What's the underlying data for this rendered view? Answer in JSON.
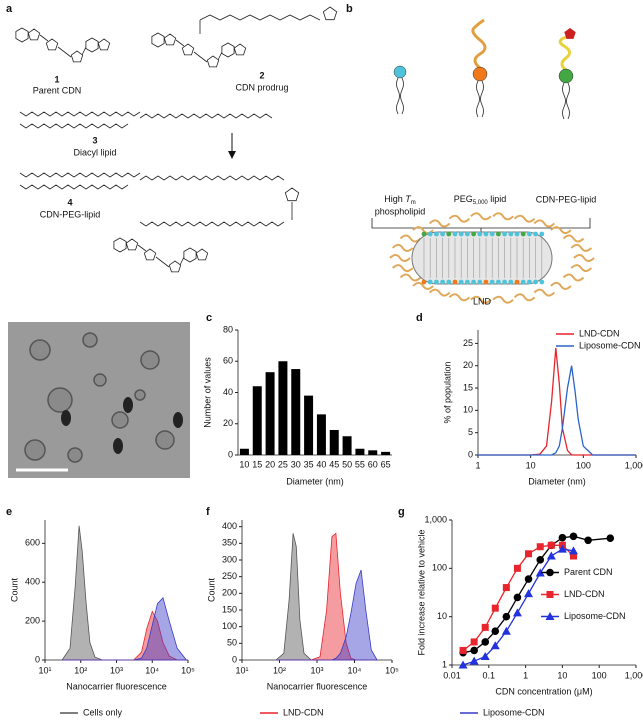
{
  "panels": {
    "a": {
      "label": "a",
      "compounds": [
        {
          "number": "1",
          "name": "Parent CDN"
        },
        {
          "number": "2",
          "name": "CDN prodrug"
        },
        {
          "number": "3",
          "name": "Diacyl lipid"
        },
        {
          "number": "4",
          "name": "CDN-PEG-lipid"
        }
      ]
    },
    "b": {
      "label": "b",
      "phospholipid": {
        "prefix": "High ",
        "italic": "T",
        "sub": "m",
        "line2": "phospholipid"
      },
      "peg_lipid": {
        "prefix": "PEG",
        "sub": "5,000",
        "suffix": " lipid"
      },
      "cdn_peg_lipid": "CDN-PEG-lipid",
      "particle": "LND"
    }
  },
  "chart_data": [
    {
      "type": "bar",
      "panel": "c",
      "color": "#000000",
      "categories": [
        "10",
        "15",
        "20",
        "25",
        "30",
        "35",
        "40",
        "45",
        "50",
        "55",
        "60",
        "65"
      ],
      "values": [
        4,
        44,
        53,
        60,
        55,
        38,
        26,
        16,
        12,
        4,
        3,
        2
      ],
      "ylim": [
        0,
        80
      ],
      "yticks": [
        0,
        20,
        40,
        60,
        80
      ],
      "xlabel": "Diameter (nm)",
      "ylabel": "Number of values"
    },
    {
      "type": "line",
      "panel": "d",
      "xlog": true,
      "legend": "top-right",
      "x": [
        1,
        10,
        15,
        20,
        25,
        30,
        35,
        40,
        50,
        60,
        70,
        80,
        100,
        150,
        1000
      ],
      "series": [
        {
          "name": "LND-CDN",
          "color": "#e8242c",
          "values": [
            0,
            0,
            0.2,
            2,
            12,
            24,
            16,
            6,
            1,
            0,
            0,
            0,
            0,
            0,
            0
          ]
        },
        {
          "name": "Liposome-CDN",
          "color": "#2b63c9",
          "values": [
            0,
            0,
            0,
            0,
            0,
            0.5,
            2,
            6,
            15,
            20,
            14,
            8,
            2,
            0,
            0
          ]
        }
      ],
      "xlim": [
        1,
        1000
      ],
      "xticks": [
        1,
        10,
        100,
        {
          "value": 1000,
          "label": "1,000"
        }
      ],
      "ylim": [
        0,
        28
      ],
      "yticks": [
        0,
        5,
        10,
        15,
        20,
        25
      ],
      "xlabel": "Diameter (nm)",
      "ylabel": "% of population"
    },
    {
      "type": "area",
      "panel": "e",
      "xlog": true,
      "legend": "bottom",
      "x": [
        30,
        50,
        70,
        90,
        110,
        140,
        180,
        250,
        400,
        3000,
        5000,
        7000,
        10000,
        14000,
        20000,
        30000,
        50000,
        90000
      ],
      "series": [
        {
          "name": "Cells only",
          "color": "#555555",
          "values": [
            0,
            60,
            380,
            690,
            560,
            300,
            90,
            15,
            0,
            0,
            0,
            0,
            0,
            0,
            0,
            0,
            0,
            0
          ]
        },
        {
          "name": "LND-CDN",
          "color": "#e8242c",
          "values": [
            0,
            0,
            0,
            0,
            0,
            0,
            0,
            0,
            0,
            0,
            40,
            160,
            250,
            200,
            90,
            20,
            0,
            0
          ]
        },
        {
          "name": "Liposome-CDN",
          "color": "#3a3ac8",
          "values": [
            0,
            0,
            0,
            0,
            0,
            0,
            0,
            0,
            0,
            0,
            10,
            60,
            180,
            290,
            320,
            200,
            60,
            0
          ]
        }
      ],
      "xlim": [
        10,
        100000
      ],
      "xticks": [
        {
          "value": 10,
          "label": "10¹"
        },
        {
          "value": 100,
          "label": "10²"
        },
        {
          "value": 1000,
          "label": "10³"
        },
        {
          "value": 10000,
          "label": "10⁴"
        },
        {
          "value": 100000,
          "label": "10⁵"
        }
      ],
      "ylim": [
        0,
        720
      ],
      "yticks": [
        0,
        200,
        400,
        600
      ],
      "xlabel": "Nanocarrier fluorescence",
      "ylabel": "Count"
    },
    {
      "type": "area",
      "panel": "f",
      "xlog": true,
      "x": [
        80,
        130,
        180,
        230,
        280,
        350,
        450,
        700,
        1200,
        1800,
        2500,
        3200,
        4200,
        6000,
        8000,
        11000,
        15000,
        20000,
        28000,
        40000
      ],
      "series": [
        {
          "color": "#555555",
          "values": [
            0,
            20,
            180,
            380,
            340,
            120,
            20,
            0,
            0,
            0,
            0,
            0,
            0,
            0,
            0,
            0,
            0,
            0,
            0,
            0
          ]
        },
        {
          "color": "#e8242c",
          "values": [
            0,
            0,
            0,
            0,
            0,
            0,
            0,
            0,
            10,
            150,
            370,
            380,
            200,
            50,
            5,
            0,
            0,
            0,
            0,
            0
          ]
        },
        {
          "color": "#3a3ac8",
          "values": [
            0,
            0,
            0,
            0,
            0,
            0,
            0,
            0,
            0,
            0,
            0,
            5,
            20,
            70,
            140,
            230,
            270,
            150,
            30,
            0
          ]
        }
      ],
      "xlim": [
        10,
        100000
      ],
      "xticks": [
        {
          "value": 10,
          "label": "10¹"
        },
        {
          "value": 100,
          "label": "10²"
        },
        {
          "value": 1000,
          "label": "10³"
        },
        {
          "value": 10000,
          "label": "10⁴"
        },
        {
          "value": 100000,
          "label": "10⁵"
        }
      ],
      "ylim": [
        0,
        420
      ],
      "yticks": [
        0,
        50,
        100,
        150,
        200,
        250,
        300,
        350,
        400
      ],
      "xlabel": "Nanocarrier fluorescence",
      "ylabel": "Count"
    },
    {
      "type": "line",
      "panel": "g",
      "xlog": true,
      "ylog": true,
      "legend": "right",
      "x": [
        0.02,
        0.04,
        0.08,
        0.15,
        0.3,
        0.6,
        1.2,
        2.5,
        5,
        10,
        20,
        50,
        200
      ],
      "series": [
        {
          "name": "Parent CDN",
          "color": "#000000",
          "marker": "circle",
          "values": [
            1.8,
            2,
            3,
            5,
            10,
            25,
            60,
            150,
            300,
            430,
            460,
            380,
            420
          ]
        },
        {
          "name": "LND-CDN",
          "color": "#e8242c",
          "marker": "square",
          "values": [
            2,
            3,
            6,
            15,
            40,
            100,
            200,
            280,
            300,
            300,
            180,
            null,
            null
          ]
        },
        {
          "name": "Liposome-CDN",
          "color": "#2233dd",
          "marker": "triangle",
          "values": [
            1,
            1.2,
            1.5,
            2.5,
            5,
            12,
            30,
            80,
            180,
            250,
            230,
            null,
            null
          ]
        }
      ],
      "xlim": [
        0.01,
        1000
      ],
      "xticks": [
        0.01,
        0.1,
        1,
        10,
        100,
        {
          "value": 1000,
          "label": "1,000"
        }
      ],
      "ylim": [
        1,
        1000
      ],
      "yticks": [
        1,
        10,
        100,
        {
          "value": 1000,
          "label": "1,000"
        }
      ],
      "xlabel": "CDN concentration (μM)",
      "ylabel": "Fold increase relative to vehicle"
    }
  ]
}
